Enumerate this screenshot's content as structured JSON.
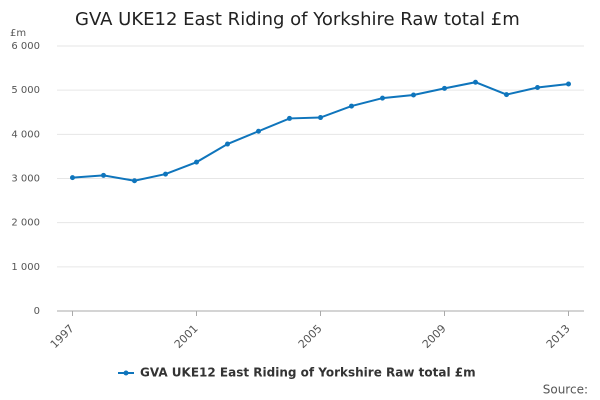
{
  "chart_data": {
    "type": "line",
    "title": "GVA UKE12 East Riding of Yorkshire Raw total £m",
    "y_label": "£m",
    "source": "Source:",
    "x": [
      1997,
      1998,
      1999,
      2000,
      2001,
      2002,
      2003,
      2004,
      2005,
      2006,
      2007,
      2008,
      2009,
      2010,
      2011,
      2012,
      2013
    ],
    "series": [
      {
        "name": "GVA UKE12 East Riding of Yorkshire Raw total £m",
        "color": "#0f75bc",
        "values": [
          3020,
          3070,
          2950,
          3100,
          3370,
          3780,
          4070,
          4360,
          4380,
          4640,
          4820,
          4890,
          5040,
          5180,
          4900,
          5060,
          5140
        ]
      }
    ],
    "xlim": [
      1996.5,
      2013.5
    ],
    "xticks": [
      1997,
      2001,
      2005,
      2009,
      2013
    ],
    "ylim": [
      0,
      6000
    ],
    "yticks": [
      0,
      {
        "value": 1000,
        "label": "1 000"
      },
      {
        "value": 2000,
        "label": "2 000"
      },
      {
        "value": 3000,
        "label": "3 000"
      },
      {
        "value": 4000,
        "label": "4 000"
      },
      {
        "value": 5000,
        "label": "5 000"
      },
      {
        "value": 6000,
        "label": "6 000"
      }
    ],
    "grid": true
  }
}
